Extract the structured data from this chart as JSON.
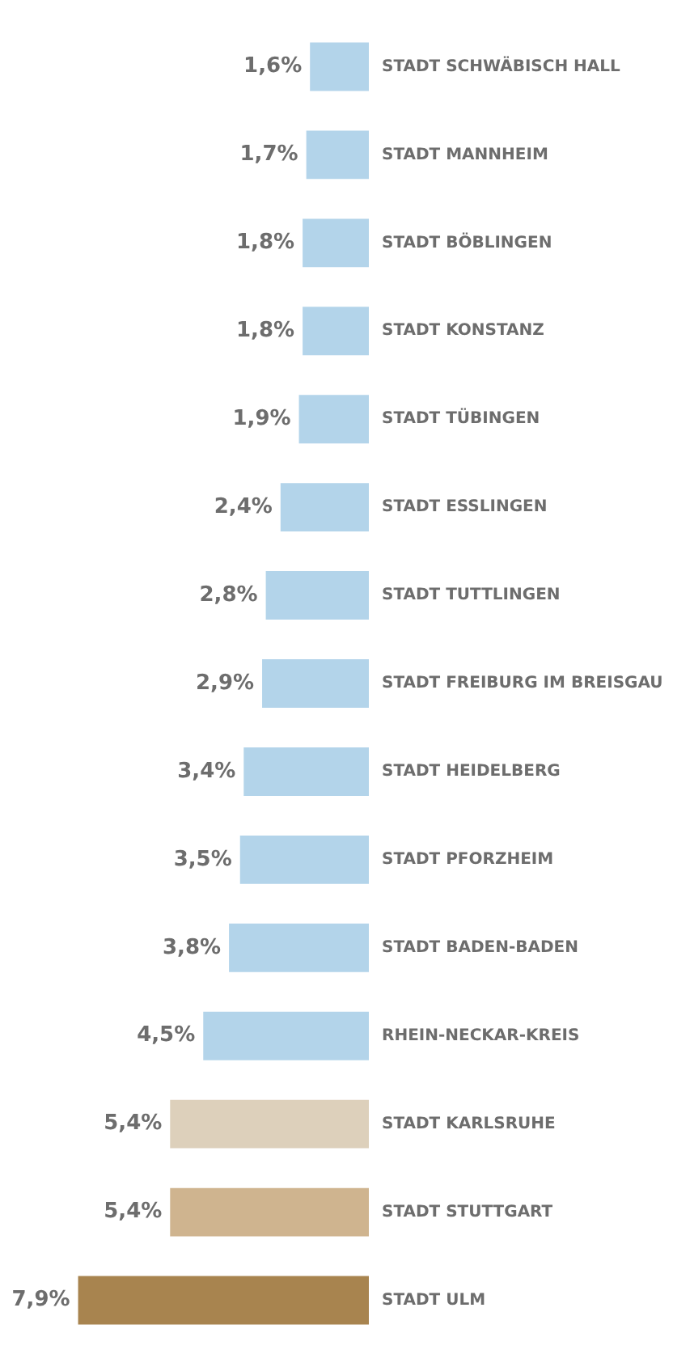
{
  "chart_data": {
    "type": "bar",
    "orientation": "horizontal",
    "categories": [
      "STADT SCHWÄBISCH HALL",
      "STADT MANNHEIM",
      "STADT BÖBLINGEN",
      "STADT KONSTANZ",
      "STADT TÜBINGEN",
      "STADT ESSLINGEN",
      "STADT TUTTLINGEN",
      "STADT FREIBURG IM BREISGAU",
      "STADT HEIDELBERG",
      "STADT PFORZHEIM",
      "STADT BADEN-BADEN",
      "RHEIN-NECKAR-KREIS",
      "STADT KARLSRUHE",
      "STADT STUTTGART",
      "STADT ULM"
    ],
    "values": [
      1.6,
      1.7,
      1.8,
      1.8,
      1.9,
      2.4,
      2.8,
      2.9,
      3.4,
      3.5,
      3.8,
      4.5,
      5.4,
      5.4,
      7.9
    ],
    "colors": [
      "#b3d4ea",
      "#b3d4ea",
      "#b3d4ea",
      "#b3d4ea",
      "#b3d4ea",
      "#b3d4ea",
      "#b3d4ea",
      "#b3d4ea",
      "#b3d4ea",
      "#b3d4ea",
      "#b3d4ea",
      "#b3d4ea",
      "#ddd0bb",
      "#cfb48f",
      "#a8844f"
    ],
    "value_labels": [
      "1,6%",
      "1,7%",
      "1,8%",
      "1,8%",
      "1,9%",
      "2,4%",
      "2,8%",
      "2,9%",
      "3,4%",
      "3,5%",
      "3,8%",
      "4,5%",
      "5,4%",
      "5,4%",
      "7,9%"
    ],
    "grid": false,
    "legend": false
  }
}
